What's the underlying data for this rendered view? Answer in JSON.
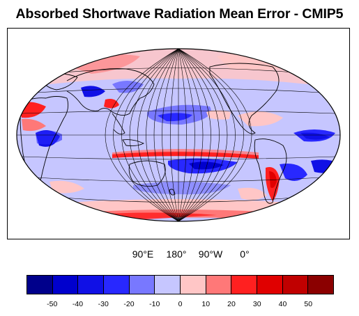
{
  "title": "Absorbed Shortwave Radiation Mean Error - CMIP5",
  "map": {
    "projection": "Hammer/Aitoff (oval world map)",
    "field": "absorbed shortwave radiation error",
    "central_longitude": "Pacific-centred",
    "background_color": "#c6c6ff",
    "coastline_color": "#000000",
    "graticule_color": "#000000"
  },
  "longitude_labels": [
    "90°E",
    "180°",
    "90°W",
    "0°"
  ],
  "colorbar": {
    "colors": [
      "#00008b",
      "#0000cd",
      "#1010e6",
      "#2828ff",
      "#7878ff",
      "#c6c6ff",
      "#ffc6c6",
      "#ff7878",
      "#ff2020",
      "#e00000",
      "#c00000",
      "#8b0000"
    ],
    "tick_labels": [
      "-50",
      "-40",
      "-30",
      "-20",
      "-10",
      "0",
      "10",
      "20",
      "30",
      "40",
      "50"
    ]
  }
}
